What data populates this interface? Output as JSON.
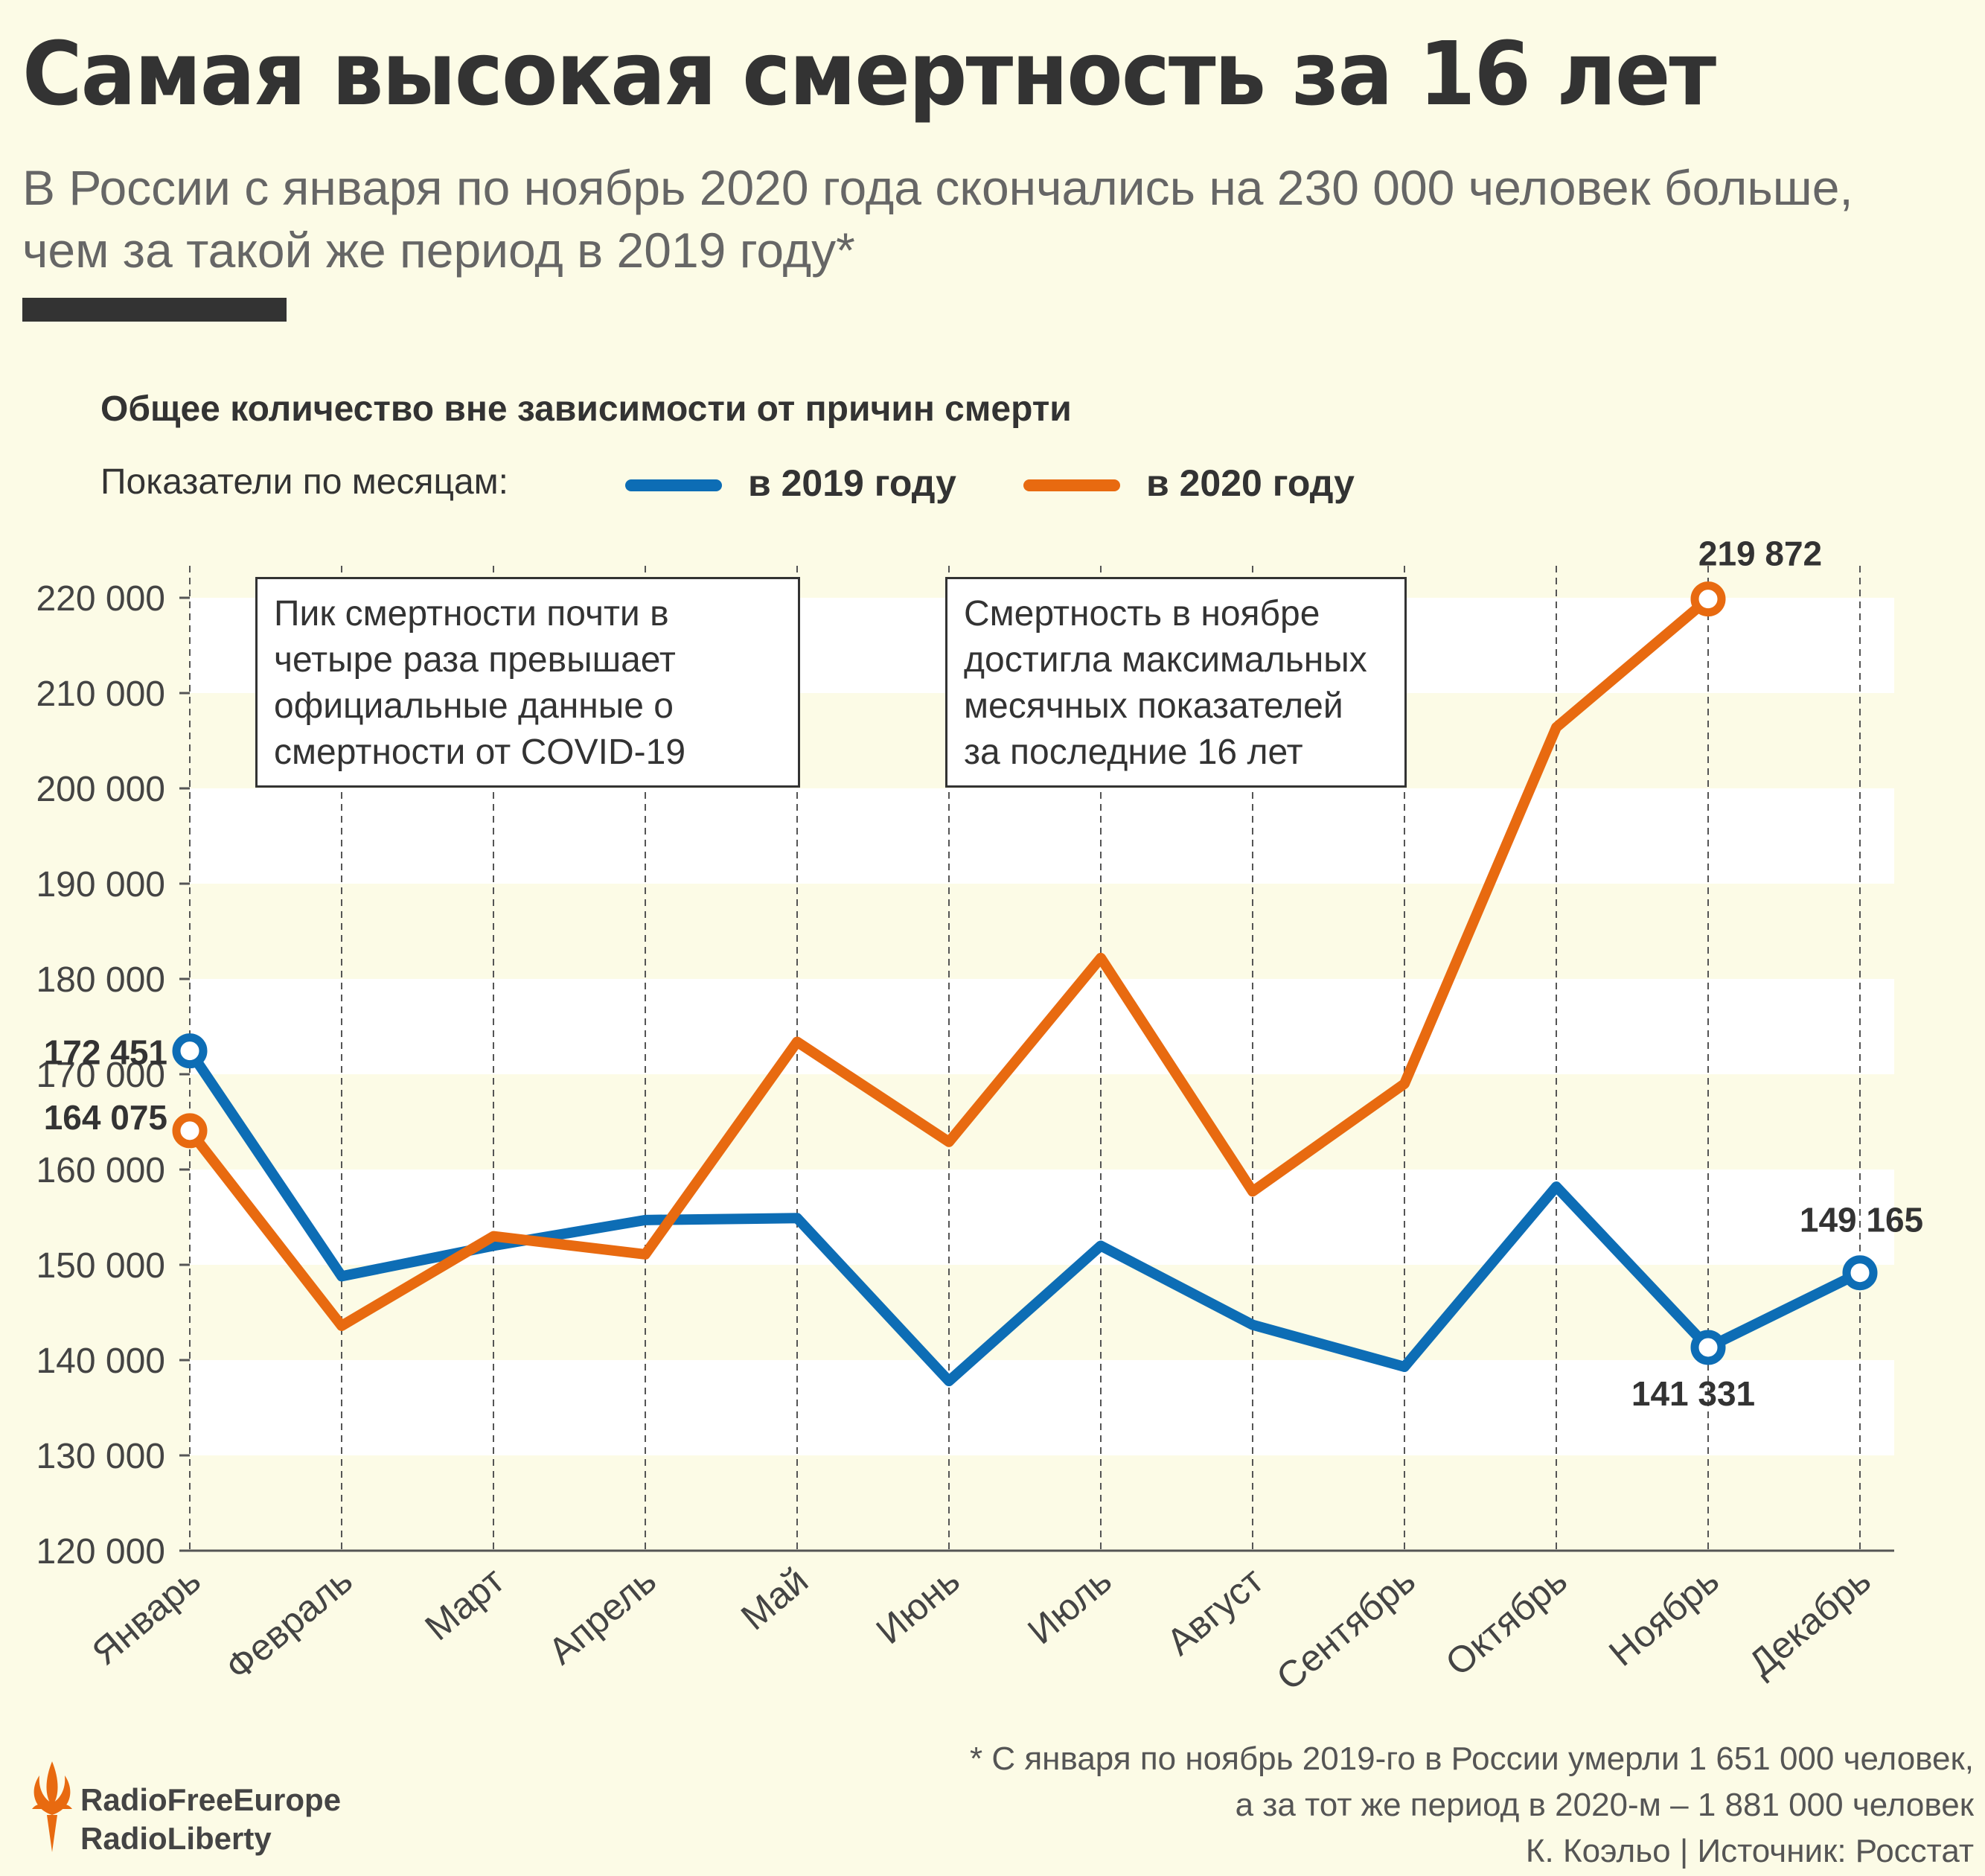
{
  "header": {
    "title": "Самая высокая смертность за 16 лет",
    "subtitle_line1": "В России с января по ноябрь 2020 года скончались на 230 000 человек больше,",
    "subtitle_line2": "чем за такой же период в 2019 году*"
  },
  "chart_data": {
    "type": "line",
    "title": "Общее количество вне зависимости от причин смерти",
    "legend_label": "Показатели по месяцам:",
    "categories": [
      "Январь",
      "Февраль",
      "Март",
      "Апрель",
      "Май",
      "Июнь",
      "Июль",
      "Август",
      "Сентябрь",
      "Октябрь",
      "Ноябрь",
      "Декабрь"
    ],
    "series": [
      {
        "name": "в 2019 году",
        "color": "#0d6db5",
        "values": [
          172451,
          148800,
          152000,
          154700,
          154900,
          137800,
          152000,
          143700,
          139300,
          158200,
          141331,
          149165
        ]
      },
      {
        "name": "в 2020 году",
        "color": "#e86a10",
        "values": [
          164075,
          143600,
          153000,
          151100,
          173400,
          162900,
          182200,
          157700,
          169000,
          206400,
          219872,
          null
        ]
      }
    ],
    "ylim": [
      120000,
      220000
    ],
    "yticks": [
      "120 000",
      "130 000",
      "140 000",
      "150 000",
      "160 000",
      "170 000",
      "180 000",
      "190 000",
      "200 000",
      "210 000",
      "220 000"
    ],
    "grid": "horizontal bands, dashed vertical month lines",
    "point_labels": [
      {
        "series": 0,
        "index": 0,
        "text": "172 451"
      },
      {
        "series": 1,
        "index": 0,
        "text": "164 075"
      },
      {
        "series": 1,
        "index": 10,
        "text": "219 872"
      },
      {
        "series": 0,
        "index": 10,
        "text": "141 331"
      },
      {
        "series": 0,
        "index": 11,
        "text": "149 165"
      }
    ],
    "annotations": [
      {
        "text": "Пик смертности почти в четыре раза превышает официальные данные о смертности от COVID-19"
      },
      {
        "text": "Смертность в ноябре достигла максимальных месячных показателей за последние 16 лет"
      }
    ]
  },
  "footer": {
    "note_line1": "* С января по ноябрь 2019-го в России умерли 1 651 000 человек,",
    "note_line2": "а за тот же период в 2020-м – 1 881 000 человек",
    "credit": "К. Коэльо | Источник: Росстат",
    "logo_line1": "RadioFreeEurope",
    "logo_line2": "RadioLiberty",
    "logo_icon": "rfe-rl-flame-icon"
  }
}
